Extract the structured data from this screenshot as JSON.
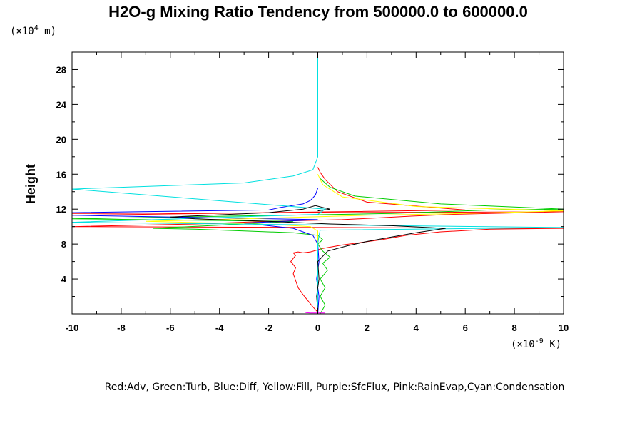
{
  "chart_data": {
    "type": "line",
    "title": "H2O-g Mixing Ratio Tendency from 500000.0 to 600000.0",
    "ylabel": "Height",
    "y_unit_prefix": "(×10",
    "y_unit_exp": "4",
    "y_unit_suffix": " m)",
    "x_unit_prefix": "(×10",
    "x_unit_exp": "-9",
    "x_unit_suffix": " K)",
    "legend_text": "Red:Adv, Green:Turb, Blue:Diff, Yellow:Fill, Purple:SfcFlux, Pink:RainEvap,Cyan:Condensation",
    "xlim": [
      -10,
      10
    ],
    "ylim": [
      0,
      30
    ],
    "x_ticks": [
      -10,
      -8,
      -6,
      -4,
      -2,
      0,
      2,
      4,
      6,
      8,
      10
    ],
    "y_ticks": [
      4,
      8,
      12,
      16,
      20,
      24,
      28
    ],
    "grid": false,
    "series": [
      {
        "color": "#ff0000",
        "x": [
          0,
          -0.2,
          -0.4,
          -0.6,
          -0.8,
          -0.9,
          -1.0,
          -0.9,
          -1.1,
          -0.9,
          -1.0,
          -0.8,
          -0.6,
          -0.3,
          0.2,
          1.0,
          1.8,
          2.6,
          3.6,
          5.0,
          7.0,
          10.0,
          -10.0,
          -5.0,
          -2.0,
          1.0,
          2.5,
          3.8,
          5.5,
          7.0,
          8.5,
          10.0,
          -10.0,
          -10.0,
          6.0,
          2.0,
          0.8,
          0.3,
          0.1,
          0
        ],
        "y": [
          0.2,
          0.8,
          1.5,
          2.2,
          3.0,
          3.8,
          4.6,
          5.3,
          6.0,
          6.7,
          7.0,
          7.1,
          7.0,
          7.1,
          7.5,
          7.9,
          8.2,
          8.5,
          9.0,
          9.4,
          9.7,
          9.8,
          10.0,
          10.3,
          10.6,
          10.8,
          11.0,
          11.2,
          11.4,
          11.5,
          11.6,
          11.7,
          11.5,
          11.3,
          11.9,
          12.8,
          14.0,
          15.4,
          16.2,
          16.8
        ]
      },
      {
        "color": "#00cc00",
        "x": [
          0.1,
          0.3,
          0.1,
          0.3,
          0.1,
          0.4,
          0.2,
          0.5,
          0.2,
          0.0,
          0.2,
          0.0,
          -1.0,
          -3.0,
          -5.0,
          -6.7,
          -3.0,
          -1.0,
          -10.0,
          3.0,
          7.0,
          10.0,
          5.0,
          1.5,
          0.5,
          0.1
        ],
        "y": [
          0,
          1.0,
          2.0,
          3.0,
          4.0,
          5.0,
          5.8,
          6.5,
          7.2,
          8.0,
          8.5,
          9.0,
          9.3,
          9.5,
          9.7,
          9.8,
          10.3,
          10.6,
          10.9,
          11.5,
          11.9,
          12.0,
          12.6,
          13.5,
          14.5,
          15.5
        ]
      },
      {
        "color": "#0000ff",
        "x": [
          0,
          0.05,
          -0.05,
          0.05,
          0,
          -0.2,
          -1.0,
          -3.0,
          0,
          -10.0,
          -10.0,
          -2.0,
          -1.5,
          -0.6,
          -0.3,
          -0.1,
          0
        ],
        "y": [
          0,
          2.0,
          4.0,
          6.0,
          8.0,
          9.0,
          9.8,
          10.4,
          10.8,
          11.3,
          11.6,
          11.9,
          12.2,
          12.6,
          13.0,
          13.6,
          14.4
        ]
      },
      {
        "color": "#ffff00",
        "x": [
          0,
          0,
          -0.3,
          -1.5,
          -4.0,
          -7.0,
          -3.0,
          2.0,
          6.0,
          10.0,
          4.0,
          1.0,
          0.2,
          0
        ],
        "y": [
          0,
          9.5,
          10.0,
          10.2,
          10.4,
          10.6,
          10.9,
          11.3,
          11.5,
          11.8,
          12.3,
          13.4,
          14.8,
          16.0
        ]
      },
      {
        "color": "#00e0e0",
        "x": [
          0,
          0,
          0,
          0.05,
          0.1,
          10.0,
          -10.0,
          0,
          0.3,
          -10.0,
          -3.0,
          -1.0,
          -0.2,
          0,
          0,
          0
        ],
        "y": [
          0,
          4.0,
          8.0,
          9.0,
          9.6,
          9.9,
          10.5,
          11.4,
          12.0,
          14.3,
          15.0,
          15.8,
          16.5,
          18.0,
          24.0,
          30.0
        ]
      },
      {
        "color": "#000000",
        "x": [
          0,
          -0.05,
          0.05,
          0,
          0.4,
          1.2,
          2.0,
          3.0,
          4.0,
          5.2,
          3.0,
          0.5,
          -2.0,
          -5.0,
          -6.0,
          -2.0,
          -0.6,
          -0.1,
          0.2,
          0.5,
          0
        ],
        "y": [
          0.3,
          2.0,
          4.0,
          6.0,
          7.2,
          7.8,
          8.3,
          8.8,
          9.3,
          9.8,
          10.1,
          10.3,
          10.6,
          10.9,
          11.1,
          11.6,
          12.0,
          12.4,
          12.2,
          12.0,
          11.8
        ]
      },
      {
        "color": "#ff00ff",
        "x": [
          -0.5,
          -0.3,
          0.3
        ],
        "y": [
          0.15,
          0.1,
          0.1
        ]
      }
    ]
  }
}
